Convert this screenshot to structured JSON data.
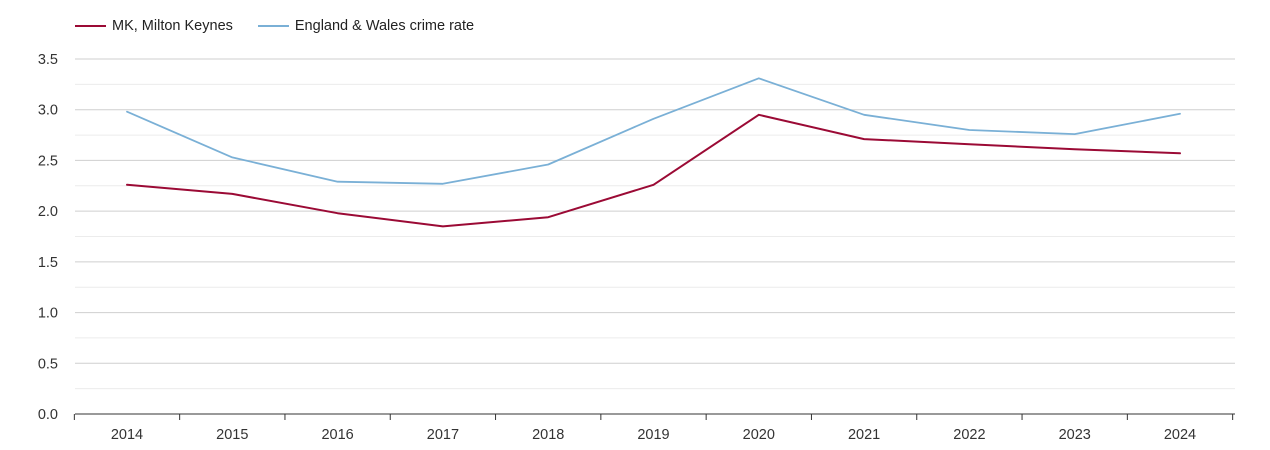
{
  "chart_data": {
    "type": "line",
    "title": "",
    "xlabel": "",
    "ylabel": "",
    "x": [
      "2014",
      "2015",
      "2016",
      "2017",
      "2018",
      "2019",
      "2020",
      "2021",
      "2022",
      "2023",
      "2024"
    ],
    "ylim": [
      0,
      3.5
    ],
    "yticks": [
      "0.0",
      "0.5",
      "1.0",
      "1.5",
      "2.0",
      "2.5",
      "3.0",
      "3.5"
    ],
    "grid": true,
    "legend_position": "top-left",
    "series": [
      {
        "name": "MK, Milton Keynes",
        "color": "#9b0a35",
        "values": [
          2.26,
          2.17,
          1.98,
          1.85,
          1.94,
          2.26,
          2.95,
          2.71,
          2.66,
          2.61,
          2.57
        ]
      },
      {
        "name": "England & Wales crime rate",
        "color": "#7ab0d6",
        "values": [
          2.98,
          2.53,
          2.29,
          2.27,
          2.46,
          2.91,
          3.31,
          2.95,
          2.8,
          2.76,
          2.96
        ]
      }
    ]
  }
}
